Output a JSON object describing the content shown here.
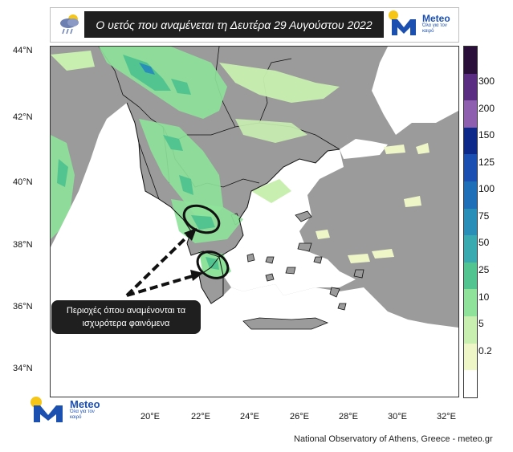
{
  "header": {
    "title": "Ο υετός που αναμένεται τη Δευτέρα 29 Αυγούστου 2022",
    "icon": "rain-cloud-icon"
  },
  "logo": {
    "brand": "Meteo",
    "tagline": "Όλα για τον καιρό",
    "colors": {
      "yellow": "#f5c518",
      "blue": "#1b4fb0"
    }
  },
  "map": {
    "lat_labels": [
      "44°N",
      "42°N",
      "40°N",
      "38°N",
      "36°N",
      "34°N"
    ],
    "lon_labels": [
      "20°E",
      "22°E",
      "24°E",
      "26°E",
      "28°E",
      "30°E",
      "32°E"
    ],
    "colors": {
      "sea": "#ffffff",
      "land": "#9b9b9b"
    }
  },
  "legend": {
    "labels": [
      "300",
      "200",
      "150",
      "125",
      "100",
      "75",
      "50",
      "25",
      "10",
      "5",
      "0.2"
    ],
    "colors": [
      "#2a0f3a",
      "#5a2d82",
      "#8e5fae",
      "#0d2a8a",
      "#1c4fb2",
      "#1e6fb8",
      "#2a8fb8",
      "#38aab0",
      "#52c48f",
      "#8ee29a",
      "#c8efb0",
      "#eef6c8",
      "#ffffff"
    ]
  },
  "annotation": {
    "text_line1": "Περιοχές όπου αναμένονται τα",
    "text_line2": "ισχυρότερα φαινόμενα"
  },
  "credit": "National Observatory of Athens, Greece - meteo.gr"
}
